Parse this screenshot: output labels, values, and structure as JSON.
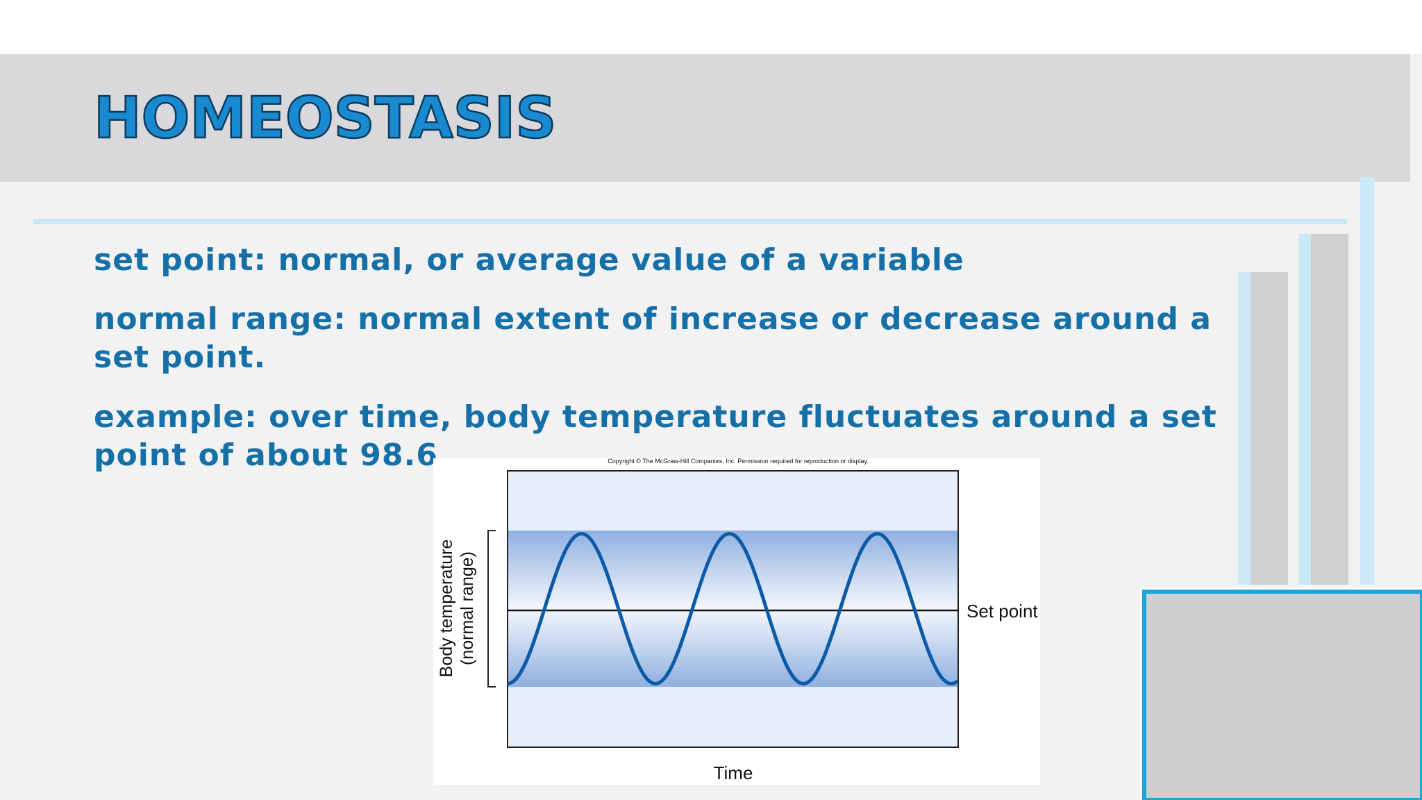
{
  "slide": {
    "title": "HOMEOSTASIS",
    "bullets": [
      [
        "set point: normal, or average value of a variable"
      ],
      [
        "normal range: normal extent of increase or decrease around a",
        "set point."
      ],
      [
        "example: over time, body temperature fluctuates around a set",
        "point of about 98.6"
      ]
    ],
    "figure": {
      "copyright": "Copyright © The McGraw-Hill Companies, Inc. Permission required for reproduction or display.",
      "y_label": [
        "Body temperature",
        "(normal range)"
      ],
      "x_label": "Time",
      "line_label": "Set point"
    }
  }
}
